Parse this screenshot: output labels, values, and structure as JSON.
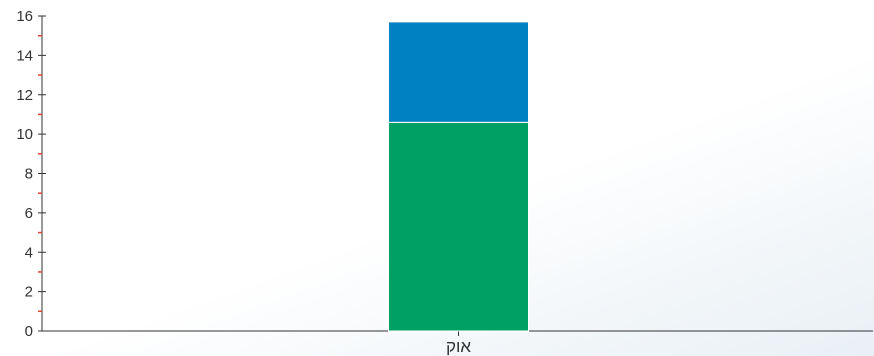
{
  "chart_data": {
    "type": "bar",
    "stacked": true,
    "categories": [
      "אוק"
    ],
    "series": [
      {
        "values": [
          10.6
        ],
        "color": "#00a064"
      },
      {
        "values": [
          5.1
        ],
        "color": "#0081c2"
      }
    ],
    "ylim": [
      0,
      16
    ],
    "yticks": [
      0,
      2,
      4,
      6,
      8,
      10,
      12,
      14,
      16
    ],
    "ytick_labels": [
      "0",
      "2",
      "4",
      "6",
      "8",
      "10",
      "12",
      "14",
      "16"
    ],
    "grid": false,
    "legend": "none",
    "xlabel": "",
    "ylabel": "",
    "title": ""
  }
}
